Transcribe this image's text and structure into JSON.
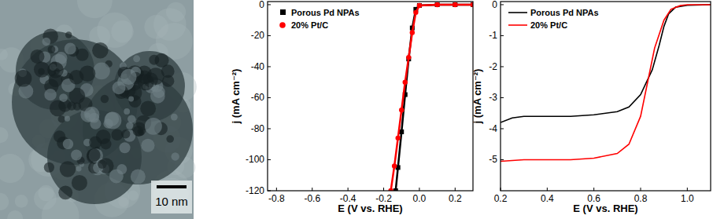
{
  "image": {
    "scale_bar": "10 nm"
  },
  "chart_data": [
    {
      "type": "line",
      "x_label": "E (V vs. RHE)",
      "y_label": "j (mA cm⁻²)",
      "xlim": [
        -0.85,
        0.3
      ],
      "ylim": [
        -120,
        2
      ],
      "xticks": [
        -0.8,
        -0.6,
        -0.4,
        -0.2,
        {
          "value": 0,
          "label": "0.0"
        },
        0.2
      ],
      "yticks": [
        0,
        -20,
        -40,
        -60,
        -80,
        -100,
        -120
      ],
      "legend": "upper left",
      "grid": false,
      "series": [
        {
          "name": "Porous Pd NPAs",
          "color": "#000000",
          "marker": "square",
          "x": [
            0.3,
            0.2,
            0.1,
            0.0,
            -0.02,
            -0.04,
            -0.06,
            -0.08,
            -0.1,
            -0.12,
            -0.133
          ],
          "values": [
            0,
            0,
            0,
            -0.5,
            -3,
            -15,
            -35,
            -58,
            -82,
            -105,
            -120
          ]
        },
        {
          "name": "20% Pt/C",
          "color": "#ff0000",
          "marker": "circle",
          "x": [
            0.3,
            0.2,
            0.1,
            0.0,
            -0.02,
            -0.04,
            -0.06,
            -0.08,
            -0.1,
            -0.12,
            -0.14,
            -0.16
          ],
          "values": [
            0,
            0,
            0,
            -0.5,
            -5,
            -18,
            -34,
            -50,
            -68,
            -86,
            -104,
            -120
          ]
        }
      ]
    },
    {
      "type": "line",
      "x_label": "E (V vs. RHE)",
      "y_label": "j (mA cm⁻²)",
      "xlim": [
        0.2,
        1.1
      ],
      "ylim": [
        -6,
        0.1
      ],
      "xticks": [
        0.2,
        0.4,
        0.6,
        0.8,
        {
          "value": 1,
          "label": "1.0"
        }
      ],
      "yticks": [
        0,
        -1,
        -2,
        -3,
        -4,
        -5
      ],
      "legend": "upper left",
      "grid": false,
      "series": [
        {
          "name": "Porous Pd NPAs",
          "color": "#000000",
          "x": [
            0.2,
            0.25,
            0.3,
            0.4,
            0.5,
            0.6,
            0.7,
            0.75,
            0.8,
            0.85,
            0.88,
            0.9,
            0.92,
            0.95,
            1.0,
            1.1
          ],
          "values": [
            -3.8,
            -3.65,
            -3.6,
            -3.6,
            -3.6,
            -3.55,
            -3.45,
            -3.3,
            -2.9,
            -2.1,
            -1.3,
            -0.7,
            -0.3,
            -0.08,
            -0.02,
            0
          ]
        },
        {
          "name": "20% Pt/C",
          "color": "#ff0000",
          "x": [
            0.2,
            0.3,
            0.5,
            0.6,
            0.7,
            0.75,
            0.8,
            0.83,
            0.86,
            0.9,
            0.93,
            0.97,
            1.0,
            1.1
          ],
          "values": [
            -5.05,
            -5.0,
            -5.0,
            -4.95,
            -4.8,
            -4.5,
            -3.6,
            -2.5,
            -1.4,
            -0.5,
            -0.15,
            -0.03,
            0,
            0
          ]
        }
      ]
    }
  ]
}
